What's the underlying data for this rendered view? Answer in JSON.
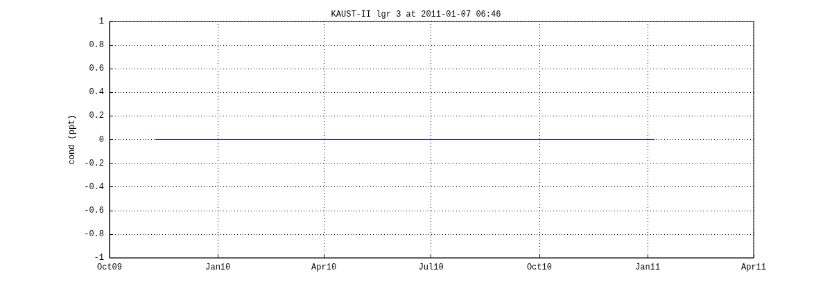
{
  "chart_data": {
    "type": "line",
    "title": "KAUST-II lgr 3 at 2011-01-07 06:46",
    "ylabel": "cond (ppt)",
    "x": [
      "2009-11-09",
      "2011-01-07"
    ],
    "series": [
      {
        "color": "#0000ff",
        "values": [
          0,
          0
        ]
      }
    ],
    "xlim": [
      "2009-10-01",
      "2011-04-01"
    ],
    "xticks": [
      {
        "value": "2009-10-01",
        "label": "Oct09"
      },
      {
        "value": "2010-01-01",
        "label": "Jan10"
      },
      {
        "value": "2010-04-01",
        "label": "Apr10"
      },
      {
        "value": "2010-07-01",
        "label": "Jul10"
      },
      {
        "value": "2010-10-01",
        "label": "Oct10"
      },
      {
        "value": "2011-01-01",
        "label": "Jan11"
      },
      {
        "value": "2011-04-01",
        "label": "Apr11"
      }
    ],
    "ylim": [
      -1,
      1
    ],
    "yticks": [
      -1,
      -0.8,
      -0.6,
      -0.4,
      -0.2,
      0,
      0.2,
      0.4,
      0.6,
      0.8,
      1
    ],
    "grid": true,
    "marker": "none",
    "line_style": "solid"
  }
}
